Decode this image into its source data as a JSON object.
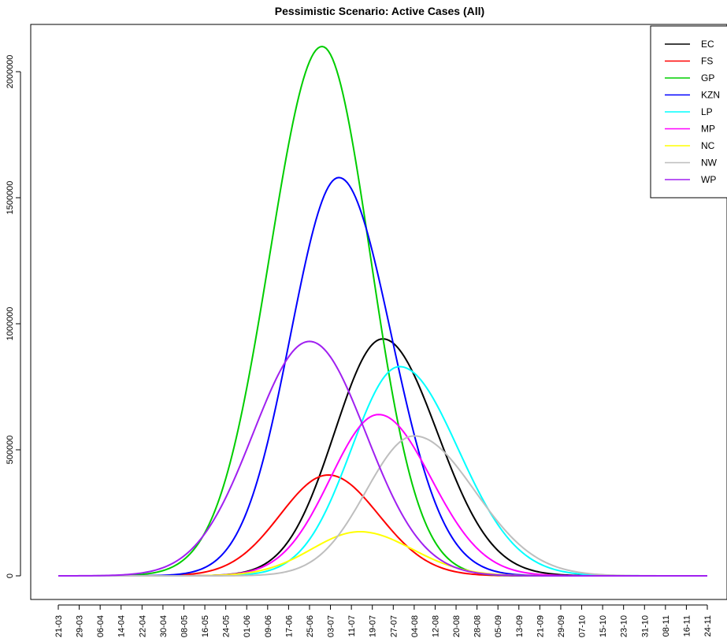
{
  "chart_data": {
    "type": "line",
    "title": "Pessimistic Scenario: Active Cases (All)",
    "xlabel": "",
    "ylabel": "",
    "x_tick_labels": [
      "21-03",
      "29-03",
      "06-04",
      "14-04",
      "22-04",
      "30-04",
      "08-05",
      "16-05",
      "24-05",
      "01-06",
      "09-06",
      "17-06",
      "25-06",
      "03-07",
      "11-07",
      "19-07",
      "27-07",
      "04-08",
      "12-08",
      "20-08",
      "28-08",
      "05-09",
      "13-09",
      "21-09",
      "29-09",
      "07-10",
      "15-10",
      "23-10",
      "31-10",
      "08-11",
      "16-11",
      "24-11"
    ],
    "y_ticks": [
      0,
      500000,
      1000000,
      1500000,
      2000000
    ],
    "y_tick_labels": [
      "0",
      "500000",
      "1000000",
      "1500000",
      "2000000"
    ],
    "ylim": [
      -50000,
      2190000
    ],
    "grid": false,
    "legend_position": "top-right",
    "series": [
      {
        "name": "EC",
        "color": "#000000",
        "peak_date_index": 15.5,
        "peak": 940000,
        "sigma_left": 2.3,
        "sigma_right": 2.6
      },
      {
        "name": "FS",
        "color": "#ff0000",
        "peak_date_index": 12.9,
        "peak": 400000,
        "sigma_left": 2.3,
        "sigma_right": 2.4
      },
      {
        "name": "GP",
        "color": "#00cd00",
        "peak_date_index": 12.6,
        "peak": 2100000,
        "sigma_left": 2.5,
        "sigma_right": 2.3
      },
      {
        "name": "KZN",
        "color": "#0000ff",
        "peak_date_index": 13.4,
        "peak": 1580000,
        "sigma_left": 2.3,
        "sigma_right": 2.5
      },
      {
        "name": "LP",
        "color": "#00ffff",
        "peak_date_index": 16.3,
        "peak": 830000,
        "sigma_left": 2.3,
        "sigma_right": 2.8
      },
      {
        "name": "MP",
        "color": "#ff00ff",
        "peak_date_index": 15.3,
        "peak": 640000,
        "sigma_left": 2.3,
        "sigma_right": 2.5
      },
      {
        "name": "NC",
        "color": "#ffff00",
        "peak_date_index": 14.4,
        "peak": 175000,
        "sigma_left": 2.3,
        "sigma_right": 2.5
      },
      {
        "name": "NW",
        "color": "#bebebe",
        "peak_date_index": 17.0,
        "peak": 555000,
        "sigma_left": 2.3,
        "sigma_right": 2.9
      },
      {
        "name": "WP",
        "color": "#a020f0",
        "peak_date_index": 12.0,
        "peak": 930000,
        "sigma_left": 2.7,
        "sigma_right": 2.7
      }
    ]
  }
}
